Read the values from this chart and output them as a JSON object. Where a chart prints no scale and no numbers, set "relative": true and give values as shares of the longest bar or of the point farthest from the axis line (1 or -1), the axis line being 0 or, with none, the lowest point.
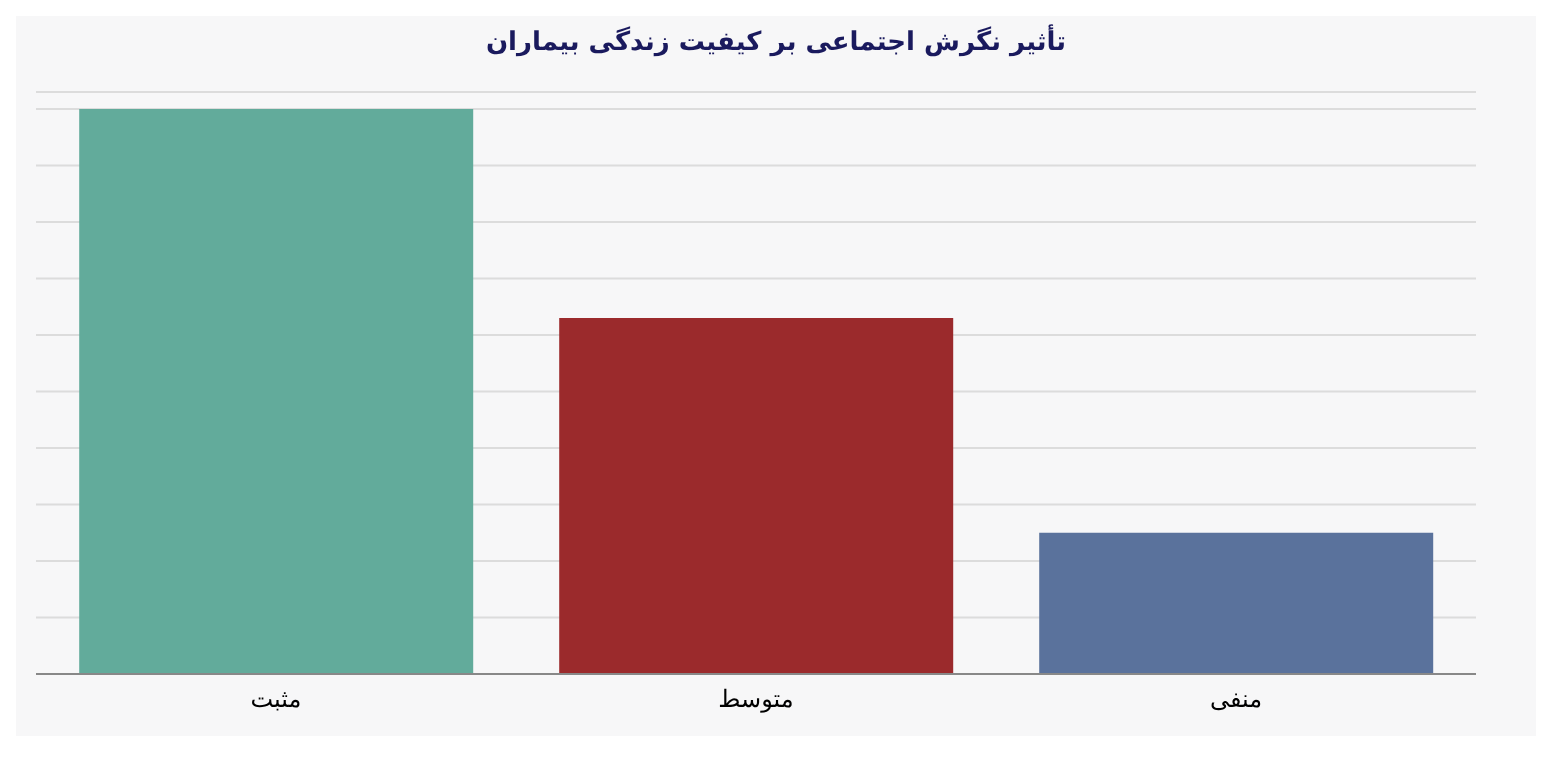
{
  "chart_data": {
    "type": "bar",
    "title": "تأثیر نگرش اجتماعی بر کیفیت زندگی بیماران",
    "categories": [
      "مثبت",
      "متوسط",
      "منفی"
    ],
    "values": [
      1,
      0.63,
      0.25
    ],
    "colors": [
      "#62ab9b",
      "#9b2a2c",
      "#5a729c"
    ],
    "relative": true,
    "grid": "y"
  }
}
